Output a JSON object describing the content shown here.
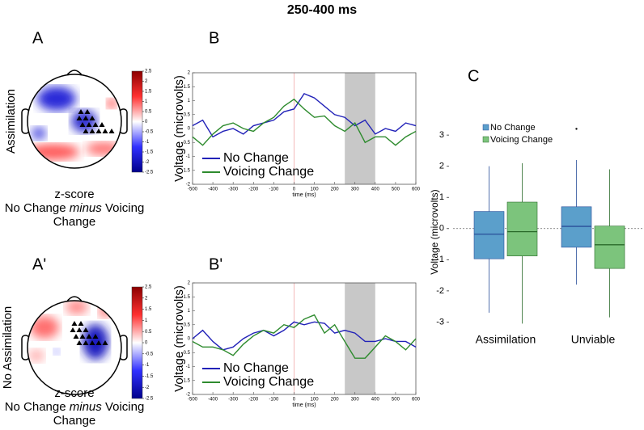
{
  "title": "250-400 ms",
  "chart_data": [
    {
      "type": "topomap",
      "panel": "A",
      "ylabel": "Assimilation",
      "colorbar_label": "z-score",
      "caption": [
        "No Change",
        "minus",
        "Voicing Change"
      ],
      "clim": [
        -2.5,
        2.5
      ],
      "cticks": [
        2.5,
        2,
        1.5,
        1,
        0.5,
        0,
        -0.5,
        -1,
        -1.5,
        -2,
        -2.5
      ]
    },
    {
      "type": "line",
      "panel": "B",
      "xlabel": "time (ms)",
      "ylabel": "Voltage (microvolts)",
      "x": [
        -500,
        -450,
        -400,
        -350,
        -300,
        -250,
        -200,
        -150,
        -100,
        -50,
        0,
        50,
        100,
        150,
        200,
        250,
        300,
        350,
        400,
        450,
        500,
        550,
        600
      ],
      "xlim": [
        -500,
        600
      ],
      "xticks": [
        -500,
        -400,
        -300,
        -200,
        -100,
        0,
        100,
        200,
        300,
        400,
        500,
        600
      ],
      "ylim": [
        -2,
        2
      ],
      "yticks": [
        -2,
        -1.5,
        -1,
        -0.5,
        0,
        0.5,
        1,
        1.5,
        2
      ],
      "shaded": [
        250,
        400
      ],
      "vline": 0,
      "legend": "lower left",
      "series": [
        {
          "name": "No Change",
          "color": "#2222b8",
          "values": [
            0.1,
            0.3,
            -0.3,
            -0.1,
            0.0,
            -0.2,
            0.1,
            0.2,
            0.3,
            0.6,
            0.7,
            1.25,
            1.1,
            0.8,
            0.5,
            0.4,
            0.1,
            0.3,
            -0.2,
            0.0,
            -0.1,
            0.2,
            0.1
          ]
        },
        {
          "name": "Voicing Change",
          "color": "#2e8b2e",
          "values": [
            -0.3,
            -0.6,
            -0.2,
            0.1,
            0.2,
            0.0,
            -0.1,
            0.2,
            0.4,
            0.8,
            1.05,
            0.7,
            0.4,
            0.45,
            0.1,
            -0.1,
            0.2,
            -0.5,
            -0.3,
            -0.3,
            -0.6,
            -0.3,
            -0.1
          ]
        }
      ]
    },
    {
      "type": "topomap",
      "panel": "A'",
      "ylabel": "No Assimilation",
      "colorbar_label": "z-score",
      "caption": [
        "No Change",
        "minus",
        "Voicing Change"
      ],
      "clim": [
        -2.5,
        2.5
      ],
      "cticks": [
        2.5,
        2,
        1.5,
        1,
        0.5,
        0,
        -0.5,
        -1,
        -1.5,
        -2,
        -2.5
      ]
    },
    {
      "type": "line",
      "panel": "B'",
      "xlabel": "time (ms)",
      "ylabel": "Voltage (microvolts)",
      "x": [
        -500,
        -450,
        -400,
        -350,
        -300,
        -250,
        -200,
        -150,
        -100,
        -50,
        0,
        50,
        100,
        150,
        200,
        250,
        300,
        350,
        400,
        450,
        500,
        550,
        600
      ],
      "xlim": [
        -500,
        600
      ],
      "xticks": [
        -500,
        -400,
        -300,
        -200,
        -100,
        0,
        100,
        200,
        300,
        400,
        500,
        600
      ],
      "ylim": [
        -2,
        2
      ],
      "yticks": [
        -2,
        -1.5,
        -1,
        -0.5,
        0,
        0.5,
        1,
        1.5,
        2
      ],
      "shaded": [
        250,
        400
      ],
      "vline": 0,
      "legend": "lower left",
      "series": [
        {
          "name": "No Change",
          "color": "#2222b8",
          "values": [
            0.0,
            0.3,
            -0.1,
            -0.4,
            -0.3,
            0.0,
            0.2,
            0.3,
            0.1,
            0.3,
            0.6,
            0.5,
            0.6,
            0.55,
            0.2,
            0.3,
            0.2,
            -0.1,
            -0.1,
            0.0,
            -0.1,
            -0.1,
            -0.3
          ]
        },
        {
          "name": "Voicing Change",
          "color": "#2e8b2e",
          "values": [
            -0.1,
            -0.3,
            -0.3,
            -0.4,
            -0.6,
            -0.2,
            0.1,
            0.3,
            0.2,
            0.5,
            0.4,
            0.7,
            0.85,
            0.2,
            0.5,
            -0.1,
            -0.7,
            -0.7,
            -0.3,
            0.1,
            -0.1,
            -0.4,
            0.0
          ]
        }
      ]
    },
    {
      "type": "box",
      "panel": "C",
      "ylabel": "Voltage (microvolts)",
      "categories": [
        "Assimilation",
        "Unviable"
      ],
      "ylim": [
        -3.3,
        3.6
      ],
      "yticks": [
        -3,
        -2,
        -1,
        0,
        1,
        2,
        3
      ],
      "hline": 0,
      "legend": "upper left",
      "series": [
        {
          "name": "No Change",
          "color": "#5b9fcb",
          "line_color": "#2a4f9a",
          "low": [
            -2.7,
            -1.8
          ],
          "q1": [
            -0.97,
            -0.6
          ],
          "median": [
            -0.18,
            0.07
          ],
          "q3": [
            0.55,
            0.7
          ],
          "high": [
            2.0,
            2.2
          ],
          "outliers": [
            null,
            3.2
          ]
        },
        {
          "name": "Voicing Change",
          "color": "#7cc47c",
          "line_color": "#2a6a2a",
          "low": [
            -3.05,
            -2.85
          ],
          "q1": [
            -0.88,
            -1.28
          ],
          "median": [
            -0.1,
            -0.52
          ],
          "q3": [
            0.85,
            0.08
          ],
          "high": [
            2.1,
            1.9
          ],
          "outliers": [
            null,
            null
          ]
        }
      ]
    }
  ]
}
